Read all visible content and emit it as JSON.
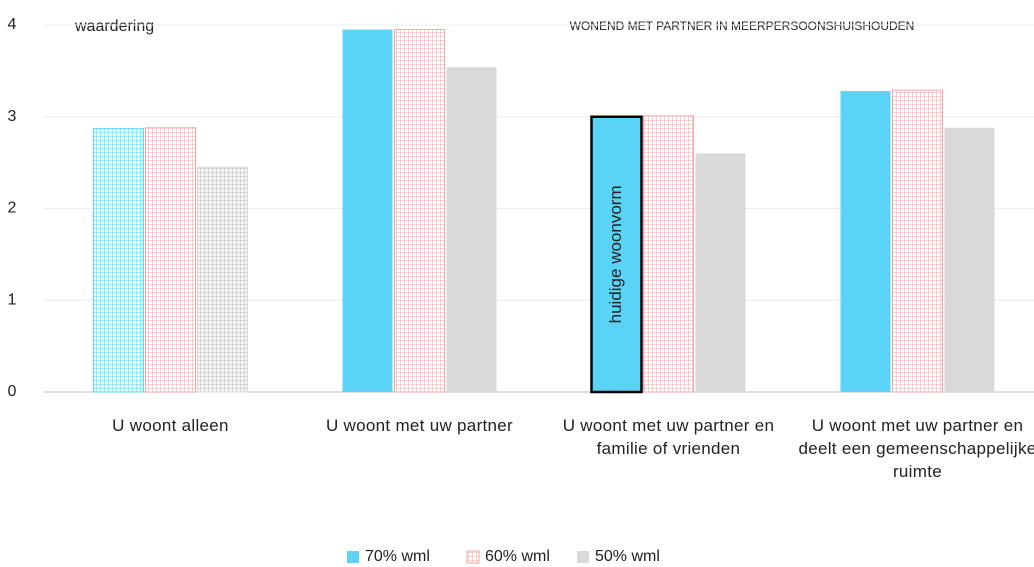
{
  "chart_data": {
    "type": "bar",
    "title": "WONEND MET PARTNER IN MEERPERSOONSHUISHOUDEN",
    "y_label": "waardering",
    "annotation": "huidige woonvorm",
    "categories": [
      "U woont alleen",
      "U woont met uw partner",
      "U woont met uw partner en familie of vrienden",
      "U woont met uw partner en deelt een gemeenschappelijke ruimte"
    ],
    "series": [
      {
        "name": "70% wml",
        "color": "#5bd3f6",
        "values": [
          2.87,
          3.95,
          3.0,
          3.28
        ]
      },
      {
        "name": "60% wml",
        "color": "#f4a6a6",
        "values": [
          2.88,
          3.95,
          3.01,
          3.29
        ]
      },
      {
        "name": "50% wml",
        "color": "#d9d9d9",
        "values": [
          2.45,
          3.54,
          2.6,
          2.88
        ]
      }
    ],
    "ylim": [
      0,
      4
    ],
    "yticks": [
      0,
      1,
      2,
      3,
      4
    ],
    "grid": true,
    "legend": "bottom"
  }
}
